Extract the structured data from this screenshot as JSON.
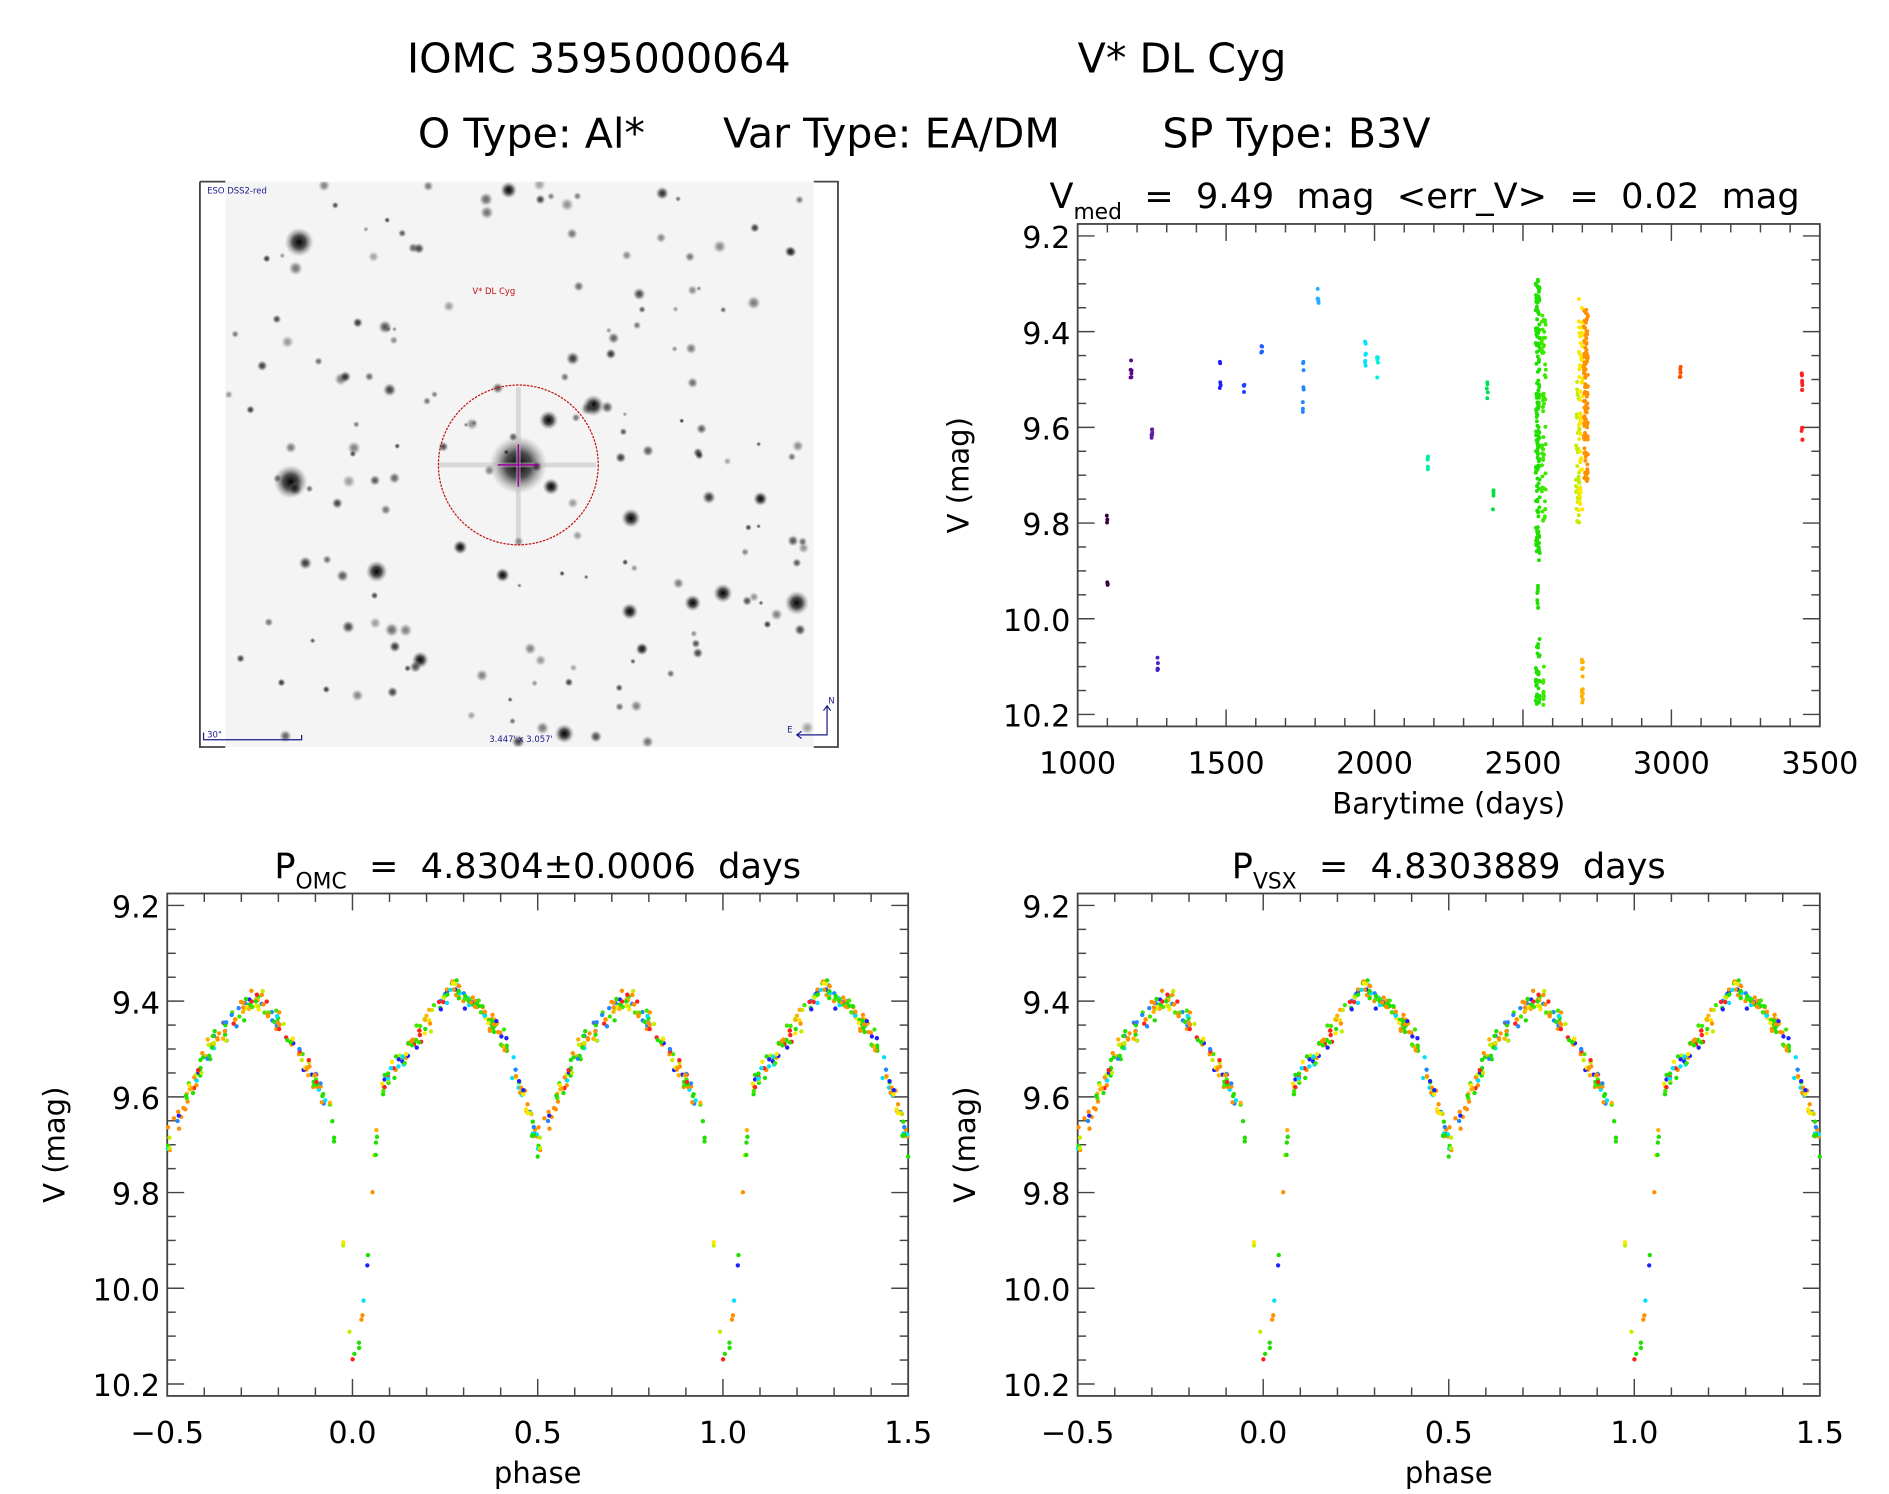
{
  "header": {
    "line1_id": "IOMC 3595000064",
    "line1_name": "V* DL Cyg",
    "line2_otype": "O Type: Al*",
    "line2_vartype": "Var Type: EA/DM",
    "line2_sptype": "SP Type: B3V"
  },
  "finder_image": {
    "survey_label": "ESO DSS2-red",
    "target_label": "V* DL Cyg",
    "scale_label": "30\"",
    "fov_label": "3.447' x 3.057'",
    "north_label": "N",
    "east_label": "E",
    "circle_color": "#c01010",
    "crosshair_color": "#a000a0"
  },
  "chart_data": [
    {
      "type": "scatter",
      "title_main": "V",
      "title_sub": "med",
      "title_rest": " = 9.49 mag <err_V> = 0.02 mag",
      "xlabel": "Barytime (days)",
      "ylabel": "V (mag)",
      "xlim": [
        1000,
        3500
      ],
      "ylim": [
        10.22,
        9.18
      ],
      "x_ticks": [
        "1000",
        "1500",
        "2000",
        "2500",
        "3000",
        "3500"
      ],
      "y_ticks": [
        "9.2",
        "9.4",
        "9.6",
        "9.8",
        "10.0",
        "10.2"
      ],
      "clusters": [
        {
          "t": 1100,
          "v": [
            9.78,
            9.8
          ],
          "n": 3,
          "color": "#3a0040"
        },
        {
          "t": 1100,
          "v": [
            9.9,
            9.93
          ],
          "n": 3,
          "color": "#3a0040"
        },
        {
          "t": 1180,
          "v": [
            9.46,
            9.5
          ],
          "n": 6,
          "color": "#5a0a80"
        },
        {
          "t": 1250,
          "v": [
            9.6,
            9.64
          ],
          "n": 6,
          "color": "#6020a0"
        },
        {
          "t": 1270,
          "v": [
            10.08,
            10.13
          ],
          "n": 5,
          "color": "#4a20c0"
        },
        {
          "t": 1480,
          "v": [
            9.46,
            9.47
          ],
          "n": 2,
          "color": "#2020ff"
        },
        {
          "t": 1480,
          "v": [
            9.5,
            9.52
          ],
          "n": 3,
          "color": "#2020ff"
        },
        {
          "t": 1560,
          "v": [
            9.51,
            9.54
          ],
          "n": 4,
          "color": "#2040ff"
        },
        {
          "t": 1620,
          "v": [
            9.43,
            9.45
          ],
          "n": 4,
          "color": "#2060ff"
        },
        {
          "t": 1760,
          "v": [
            9.46,
            9.58
          ],
          "n": 8,
          "color": "#2088ff"
        },
        {
          "t": 1810,
          "v": [
            9.31,
            9.35
          ],
          "n": 6,
          "color": "#20b0ff"
        },
        {
          "t": 1970,
          "v": [
            9.42,
            9.48
          ],
          "n": 7,
          "color": "#00e0ff"
        },
        {
          "t": 2010,
          "v": [
            9.45,
            9.5
          ],
          "n": 6,
          "color": "#00f0e0"
        },
        {
          "t": 2180,
          "v": [
            9.64,
            9.69
          ],
          "n": 5,
          "color": "#00f0a0"
        },
        {
          "t": 2380,
          "v": [
            9.5,
            9.54
          ],
          "n": 5,
          "color": "#00e060"
        },
        {
          "t": 2400,
          "v": [
            9.72,
            9.78
          ],
          "n": 5,
          "color": "#00e040"
        },
        {
          "t": 2550,
          "v": [
            9.29,
            9.88
          ],
          "n": 160,
          "color": "#20e000"
        },
        {
          "t": 2550,
          "v": [
            9.93,
            9.98
          ],
          "n": 8,
          "color": "#20e000"
        },
        {
          "t": 2550,
          "v": [
            10.03,
            10.19
          ],
          "n": 30,
          "color": "#20e000"
        },
        {
          "t": 2570,
          "v": [
            9.36,
            9.8
          ],
          "n": 60,
          "color": "#40e800"
        },
        {
          "t": 2570,
          "v": [
            10.09,
            10.18
          ],
          "n": 10,
          "color": "#40e800"
        },
        {
          "t": 2685,
          "v": [
            9.5,
            9.8
          ],
          "n": 40,
          "color": "#c0f000"
        },
        {
          "t": 2695,
          "v": [
            9.33,
            9.78
          ],
          "n": 60,
          "color": "#ffe800"
        },
        {
          "t": 2700,
          "v": [
            10.07,
            10.19
          ],
          "n": 14,
          "color": "#ffb000"
        },
        {
          "t": 2712,
          "v": [
            9.35,
            9.72
          ],
          "n": 110,
          "color": "#ff9000"
        },
        {
          "t": 3030,
          "v": [
            9.47,
            9.5
          ],
          "n": 6,
          "color": "#ff5000"
        },
        {
          "t": 3440,
          "v": [
            9.48,
            9.53
          ],
          "n": 8,
          "color": "#ff2020"
        },
        {
          "t": 3440,
          "v": [
            9.59,
            9.63
          ],
          "n": 5,
          "color": "#ff2020"
        }
      ]
    },
    {
      "type": "scatter",
      "title_main": "P",
      "title_sub": "OMC",
      "title_rest": " = 4.8304±0.0006 days",
      "xlabel": "phase",
      "ylabel": "V (mag)",
      "xlim": [
        -0.5,
        1.5
      ],
      "ylim": [
        10.22,
        9.18
      ],
      "x_ticks": [
        "−0.5",
        "0.0",
        "0.5",
        "1.0",
        "1.5"
      ],
      "y_ticks": [
        "9.2",
        "9.4",
        "9.6",
        "9.8",
        "10.0",
        "10.2"
      ],
      "period_days": 4.8304
    },
    {
      "type": "scatter",
      "title_main": "P",
      "title_sub": "VSX",
      "title_rest": " = 4.8303889 days",
      "xlabel": "phase",
      "ylabel": "V (mag)",
      "xlim": [
        -0.5,
        1.5
      ],
      "ylim": [
        10.22,
        9.18
      ],
      "x_ticks": [
        "−0.5",
        "0.0",
        "0.5",
        "1.0",
        "1.5"
      ],
      "y_ticks": [
        "9.2",
        "9.4",
        "9.6",
        "9.8",
        "10.0",
        "10.2"
      ],
      "period_days": 4.8303889
    }
  ],
  "phase_model": {
    "phase": [
      0.0,
      0.02,
      0.04,
      0.06,
      0.08,
      0.12,
      0.2,
      0.27,
      0.35,
      0.42,
      0.47,
      0.5,
      0.53,
      0.6,
      0.7,
      0.75,
      0.8,
      0.85,
      0.9,
      0.94,
      0.96,
      0.98,
      1.0
    ],
    "mag": [
      10.16,
      10.12,
      9.95,
      9.72,
      9.58,
      9.53,
      9.45,
      9.37,
      9.42,
      9.5,
      9.62,
      9.7,
      9.65,
      9.52,
      9.42,
      9.4,
      9.44,
      9.5,
      9.56,
      9.62,
      9.75,
      9.95,
      10.16
    ],
    "scatter_mag": 0.03,
    "colors": [
      "#20e000",
      "#20e000",
      "#20e000",
      "#40e800",
      "#ff9000",
      "#ff9000",
      "#ff9000",
      "#ffb000",
      "#ffe800",
      "#c0f000",
      "#2088ff",
      "#ff2020",
      "#00e0ff",
      "#2020ff"
    ]
  }
}
